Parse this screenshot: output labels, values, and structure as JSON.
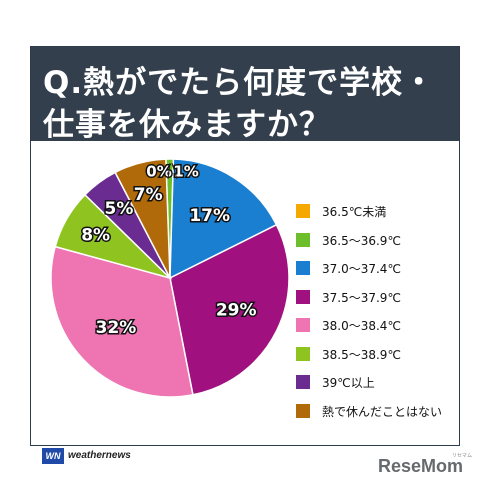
{
  "title_lines": [
    "Q.熱がでたら何度で学校・",
    "仕事を休みますか？"
  ],
  "chart_data": {
    "type": "pie",
    "title": "Q.熱がでたら何度で学校・仕事を休みますか？",
    "unit": "%",
    "slices": [
      {
        "label": "36.5℃未満",
        "value": 0,
        "display": "0%",
        "color": "#f5a800"
      },
      {
        "label": "36.5～36.9℃",
        "value": 1,
        "display": "1%",
        "color": "#6cbf2a"
      },
      {
        "label": "37.0～37.4℃",
        "value": 17,
        "display": "17%",
        "color": "#1a7fd0"
      },
      {
        "label": "37.5～37.9℃",
        "value": 29,
        "display": "29%",
        "color": "#a0107e"
      },
      {
        "label": "38.0～38.4℃",
        "value": 32,
        "display": "32%",
        "color": "#ee74b2"
      },
      {
        "label": "38.5～38.9℃",
        "value": 8,
        "display": "8%",
        "color": "#8fc31f"
      },
      {
        "label": "39℃以上",
        "value": 5,
        "display": "5%",
        "color": "#6a2c91"
      },
      {
        "label": "熱で休んだことはない",
        "value": 7,
        "display": "7%",
        "color": "#b06a0a"
      }
    ],
    "legend_position": "right"
  },
  "brand": {
    "logo": "WN",
    "name": "weathernews"
  },
  "watermark": {
    "text": "ReseMom",
    "sub": "リセマム"
  }
}
